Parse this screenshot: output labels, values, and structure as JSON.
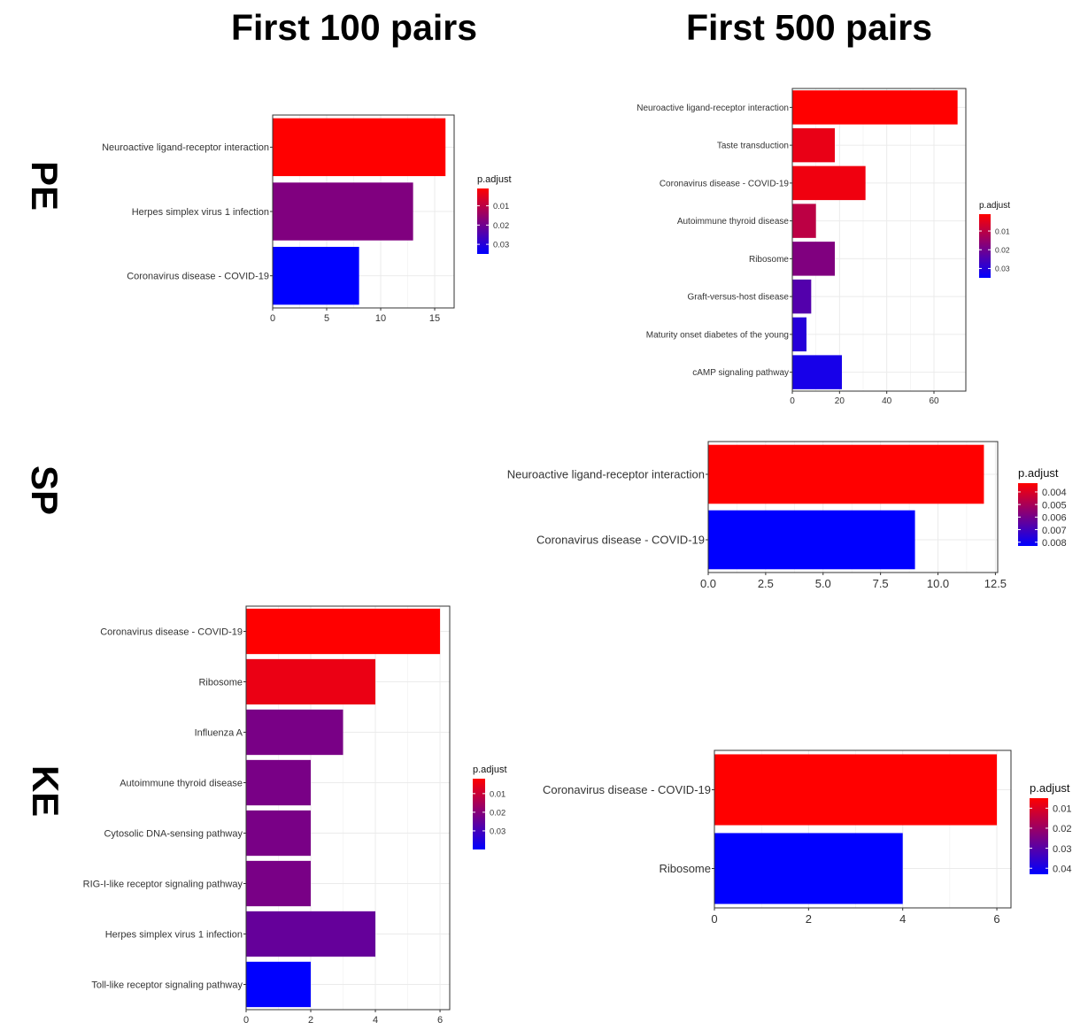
{
  "columns": [
    "First 100 pairs",
    "First 500 pairs"
  ],
  "rows": [
    "PE",
    "SP",
    "KE"
  ],
  "colors": {
    "low_p": "#ff0000",
    "high_p": "#0000ff",
    "grid": "#ebebeb",
    "frame": "#333333"
  },
  "chart_data": [
    {
      "type": "bar",
      "orientation": "horizontal",
      "panel": "PE - First 100 pairs",
      "categories": [
        "Neuroactive ligand-receptor interaction",
        "Herpes simplex virus 1 infection",
        "Coronavirus disease - COVID-19"
      ],
      "values": [
        16,
        13,
        8
      ],
      "p_adjust": [
        0.001,
        0.018,
        0.035
      ],
      "xlim": [
        0,
        16.8
      ],
      "xticks": [
        0,
        5,
        10,
        15
      ],
      "xtick_labels": [
        "0",
        "5",
        "10",
        "15"
      ],
      "legend": {
        "title": "p.adjust",
        "min": 0.001,
        "max": 0.035,
        "ticks": [
          0.01,
          0.02,
          0.03
        ],
        "tick_labels": [
          "0.01",
          "0.02",
          "0.03"
        ]
      },
      "grid": true
    },
    {
      "type": "bar",
      "orientation": "horizontal",
      "panel": "PE - First 500 pairs",
      "categories": [
        "Neuroactive ligand-receptor interaction",
        "Taste transduction",
        "Coronavirus disease - COVID-19",
        "Autoimmune thyroid disease",
        "Ribosome",
        "Graft-versus-host disease",
        "Maturity onset diabetes of the young",
        "cAMP signaling pathway"
      ],
      "values": [
        70,
        18,
        31,
        10,
        18,
        8,
        6,
        21
      ],
      "p_adjust": [
        0.001,
        0.004,
        0.003,
        0.01,
        0.018,
        0.024,
        0.03,
        0.032
      ],
      "xlim": [
        0,
        73.5
      ],
      "xticks": [
        0,
        20,
        40,
        60
      ],
      "xtick_labels": [
        "0",
        "20",
        "40",
        "60"
      ],
      "legend": {
        "title": "p.adjust",
        "min": 0.001,
        "max": 0.035,
        "ticks": [
          0.01,
          0.02,
          0.03
        ],
        "tick_labels": [
          "0.01",
          "0.02",
          "0.03"
        ]
      },
      "grid": true
    },
    {
      "type": "bar",
      "orientation": "horizontal",
      "panel": "SP - First 500 pairs",
      "categories": [
        "Neuroactive ligand-receptor interaction",
        "Coronavirus disease - COVID-19"
      ],
      "values": [
        12,
        9
      ],
      "p_adjust": [
        0.0033,
        0.0083
      ],
      "xlim": [
        0,
        12.6
      ],
      "xticks": [
        0,
        2.5,
        5,
        7.5,
        10,
        12.5
      ],
      "xtick_labels": [
        "0.0",
        "2.5",
        "5.0",
        "7.5",
        "10.0",
        "12.5"
      ],
      "legend": {
        "title": "p.adjust",
        "min": 0.0033,
        "max": 0.0083,
        "ticks": [
          0.004,
          0.005,
          0.006,
          0.007,
          0.008
        ],
        "tick_labels": [
          "0.004",
          "0.005",
          "0.006",
          "0.007",
          "0.008"
        ]
      },
      "grid": true
    },
    {
      "type": "bar",
      "orientation": "horizontal",
      "panel": "KE - First 100 pairs",
      "categories": [
        "Coronavirus disease - COVID-19",
        "Ribosome",
        "Influenza A",
        "Autoimmune thyroid disease",
        "Cytosolic DNA-sensing pathway",
        "RIG-I-like receptor signaling pathway",
        "Herpes simplex virus 1 infection",
        "Toll-like receptor signaling pathway"
      ],
      "values": [
        6,
        4,
        3,
        2,
        2,
        2,
        4,
        2
      ],
      "p_adjust": [
        0.002,
        0.005,
        0.022,
        0.022,
        0.022,
        0.022,
        0.025,
        0.04
      ],
      "xlim": [
        0,
        6.3
      ],
      "xticks": [
        0,
        2,
        4,
        6
      ],
      "xtick_labels": [
        "0",
        "2",
        "4",
        "6"
      ],
      "legend": {
        "title": "p.adjust",
        "min": 0.002,
        "max": 0.04,
        "ticks": [
          0.01,
          0.02,
          0.03
        ],
        "tick_labels": [
          "0.01",
          "0.02",
          "0.03"
        ]
      },
      "grid": true
    },
    {
      "type": "bar",
      "orientation": "horizontal",
      "panel": "KE - First 500 pairs",
      "categories": [
        "Coronavirus disease - COVID-19",
        "Ribosome"
      ],
      "values": [
        6,
        4
      ],
      "p_adjust": [
        0.005,
        0.043
      ],
      "xlim": [
        0,
        6.3
      ],
      "xticks": [
        0,
        2,
        4,
        6
      ],
      "xtick_labels": [
        "0",
        "2",
        "4",
        "6"
      ],
      "legend": {
        "title": "p.adjust",
        "min": 0.005,
        "max": 0.043,
        "ticks": [
          0.01,
          0.02,
          0.03,
          0.04
        ],
        "tick_labels": [
          "0.01",
          "0.02",
          "0.03",
          "0.04"
        ]
      },
      "grid": true
    }
  ]
}
